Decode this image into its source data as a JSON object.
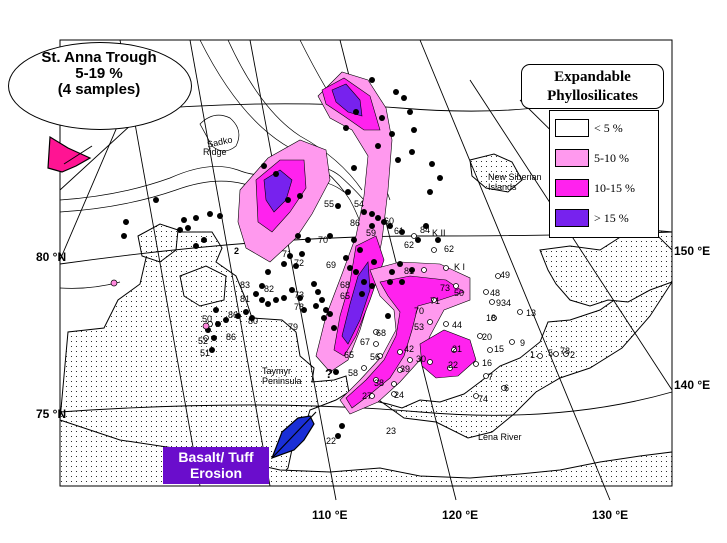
{
  "title": {
    "line1": "St. Anna Trough",
    "line2": "5-19 %",
    "line3": "(4 samples)"
  },
  "legend": {
    "title_line1": "Expandable",
    "title_line2": "Phyllosilicates",
    "items": [
      {
        "label": "< 5 %",
        "color": "#ffffff"
      },
      {
        "label": "5-10 %",
        "color": "#ff99ee"
      },
      {
        "label": "10-15 %",
        "color": "#ff22ee"
      },
      {
        "label": "> 15 %",
        "color": "#7722ee"
      }
    ]
  },
  "basalt_label": {
    "line1": "Basalt/ Tuff",
    "line2": "Erosion",
    "color": "#6a0dcc"
  },
  "arrows": {
    "left_arrow_color": "#ff1493",
    "bottom_arrow_color": "#1a2fd6"
  },
  "axes": {
    "lat_labels": [
      "80 °N",
      "75 °N"
    ],
    "lon_bottom": [
      "110 °E",
      "120 °E",
      "130 °E"
    ],
    "lon_right": [
      "150 °E",
      "140 °E"
    ]
  },
  "place_names": {
    "sadko": "Sadko",
    "ridge": "Ridge",
    "new_siberian_1": "New Siberian",
    "new_siberian_2": "Islands",
    "taymyr_1": "Taymyr",
    "taymyr_2": "Peninsula",
    "lena": "Lena River"
  },
  "stations_map": [
    "55",
    "54",
    "60",
    "86",
    "59",
    "61",
    "84",
    "KII",
    "62",
    "70",
    "2",
    "71",
    "72",
    "69",
    "68",
    "65",
    "62",
    "81",
    "KI",
    "49",
    "83",
    "82",
    "81",
    "79",
    "73",
    "78",
    "48",
    "934",
    "13",
    "86",
    "86",
    "80",
    "79",
    "56",
    "85",
    "52",
    "51",
    "67",
    "68",
    "73",
    "70",
    "71",
    "58",
    "53",
    "44",
    "20",
    "42",
    "21",
    "15",
    "9",
    "19",
    "30",
    "22",
    "16",
    "18",
    "7",
    "8",
    "1",
    "65",
    "5",
    "56",
    "39",
    "38",
    "27",
    "24",
    "74",
    "23",
    "22",
    "?"
  ]
}
